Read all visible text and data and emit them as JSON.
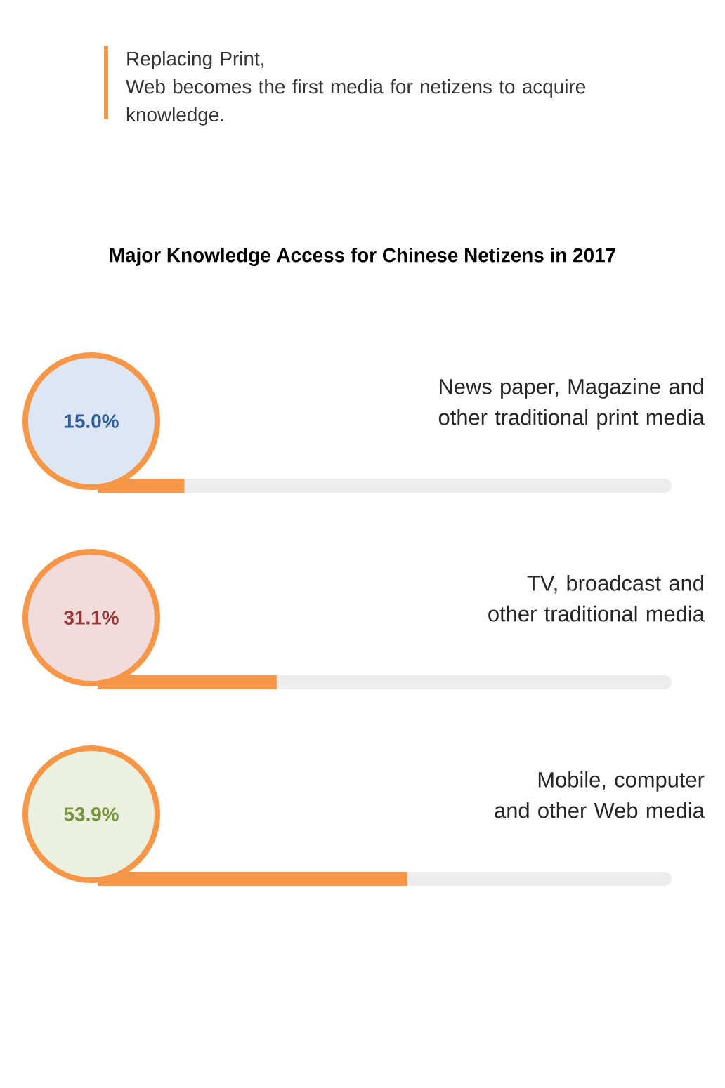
{
  "chart_data": {
    "type": "bar",
    "orientation": "horizontal",
    "subtitle": "Replacing Print,\nWeb becomes the first media for netizens to acquire knowledge.",
    "title": "Major Knowledge Access for Chinese Netizens in 2017",
    "categories": [
      "News paper, Magazine and other traditional print media",
      "TV, broadcast and other traditional media",
      "Mobile, computer and other Web media"
    ],
    "values": [
      15.0,
      31.1,
      53.9
    ],
    "value_labels": [
      "15.0%",
      "31.1%",
      "53.9%"
    ],
    "color": "#f79646"
  }
}
